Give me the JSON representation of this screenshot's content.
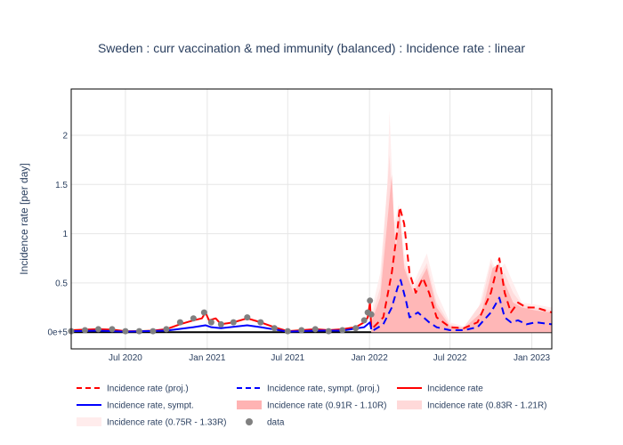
{
  "chart_data": {
    "type": "line",
    "title": "Sweden : curr vaccination & med immunity (balanced) : Incidence rate : linear",
    "ylabel": "Incidence rate [per day]",
    "xlabel": "",
    "x_ticks": [
      "Jul 2020",
      "Jan 2021",
      "Jul 2021",
      "Jan 2022",
      "Jul 2022",
      "Jan 2023"
    ],
    "y_ticks": [
      "0e+5",
      "0.5",
      "1",
      "1.5",
      "2"
    ],
    "ylim": [
      -0.17,
      2.47
    ],
    "xlim": [
      "2020-03-01",
      "2023-02-15"
    ],
    "grid": true,
    "legend_position": "bottom",
    "legend": [
      {
        "key": "proj",
        "label": "Incidence rate (proj.)",
        "style": "dash",
        "color": "#ff0000"
      },
      {
        "key": "sympt_proj",
        "label": "Incidence rate, sympt. (proj.)",
        "style": "dash",
        "color": "#0000ff"
      },
      {
        "key": "rate",
        "label": "Incidence rate",
        "style": "line",
        "color": "#ff0000"
      },
      {
        "key": "sympt",
        "label": "Incidence rate, sympt.",
        "style": "line",
        "color": "#0000ff"
      },
      {
        "key": "band1",
        "label": "Incidence rate (0.91R - 1.10R)",
        "style": "band",
        "color": "#ffb3b3"
      },
      {
        "key": "band2",
        "label": "Incidence rate (0.83R - 1.21R)",
        "style": "band",
        "color": "#ffd9d9"
      },
      {
        "key": "band3",
        "label": "Incidence rate (0.75R - 1.33R)",
        "style": "band",
        "color": "#ffecec"
      },
      {
        "key": "data",
        "label": "data",
        "style": "marker",
        "color": "#808080"
      }
    ],
    "series": {
      "data": [
        [
          "2020-03-01",
          0.01
        ],
        [
          "2020-04-01",
          0.02
        ],
        [
          "2020-05-01",
          0.03
        ],
        [
          "2020-06-01",
          0.03
        ],
        [
          "2020-07-01",
          0.01
        ],
        [
          "2020-08-01",
          0.01
        ],
        [
          "2020-09-01",
          0.01
        ],
        [
          "2020-10-01",
          0.03
        ],
        [
          "2020-11-01",
          0.1
        ],
        [
          "2020-12-01",
          0.14
        ],
        [
          "2020-12-25",
          0.2
        ],
        [
          "2021-01-10",
          0.1
        ],
        [
          "2021-02-01",
          0.08
        ],
        [
          "2021-03-01",
          0.1
        ],
        [
          "2021-04-01",
          0.15
        ],
        [
          "2021-05-01",
          0.1
        ],
        [
          "2021-06-01",
          0.04
        ],
        [
          "2021-07-01",
          0.01
        ],
        [
          "2021-08-01",
          0.02
        ],
        [
          "2021-09-01",
          0.03
        ],
        [
          "2021-10-01",
          0.01
        ],
        [
          "2021-11-01",
          0.02
        ],
        [
          "2021-12-01",
          0.04
        ],
        [
          "2021-12-20",
          0.12
        ],
        [
          "2021-12-28",
          0.2
        ],
        [
          "2022-01-02",
          0.32
        ],
        [
          "2022-01-05",
          0.18
        ]
      ],
      "rate": [
        [
          "2020-03-01",
          0.02
        ],
        [
          "2020-04-01",
          0.025
        ],
        [
          "2020-05-01",
          0.03
        ],
        [
          "2020-06-01",
          0.025
        ],
        [
          "2020-07-01",
          0.01
        ],
        [
          "2020-08-01",
          0.01
        ],
        [
          "2020-09-01",
          0.015
        ],
        [
          "2020-10-01",
          0.03
        ],
        [
          "2020-11-01",
          0.08
        ],
        [
          "2020-12-01",
          0.12
        ],
        [
          "2020-12-20",
          0.14
        ],
        [
          "2020-12-28",
          0.2
        ],
        [
          "2021-01-05",
          0.12
        ],
        [
          "2021-01-20",
          0.14
        ],
        [
          "2021-02-01",
          0.08
        ],
        [
          "2021-03-01",
          0.1
        ],
        [
          "2021-04-01",
          0.14
        ],
        [
          "2021-05-01",
          0.1
        ],
        [
          "2021-06-01",
          0.05
        ],
        [
          "2021-07-01",
          0.01
        ],
        [
          "2021-08-01",
          0.02
        ],
        [
          "2021-09-01",
          0.03
        ],
        [
          "2021-10-01",
          0.02
        ],
        [
          "2021-11-01",
          0.03
        ],
        [
          "2021-12-01",
          0.05
        ],
        [
          "2021-12-20",
          0.1
        ],
        [
          "2021-12-28",
          0.15
        ],
        [
          "2022-01-02",
          0.3
        ],
        [
          "2022-01-05",
          0.05
        ]
      ],
      "sympt": [
        [
          "2020-03-01",
          0.01
        ],
        [
          "2020-05-01",
          0.015
        ],
        [
          "2020-07-01",
          0.005
        ],
        [
          "2020-10-01",
          0.015
        ],
        [
          "2020-12-01",
          0.05
        ],
        [
          "2020-12-28",
          0.07
        ],
        [
          "2021-01-10",
          0.05
        ],
        [
          "2021-02-01",
          0.04
        ],
        [
          "2021-04-01",
          0.07
        ],
        [
          "2021-05-01",
          0.05
        ],
        [
          "2021-07-01",
          0.005
        ],
        [
          "2021-09-01",
          0.015
        ],
        [
          "2021-11-01",
          0.015
        ],
        [
          "2021-12-20",
          0.05
        ],
        [
          "2022-01-02",
          0.1
        ],
        [
          "2022-01-05",
          0.03
        ]
      ],
      "proj": [
        [
          "2022-01-10",
          0.05
        ],
        [
          "2022-02-01",
          0.15
        ],
        [
          "2022-02-20",
          0.6
        ],
        [
          "2022-03-05",
          1.05
        ],
        [
          "2022-03-10",
          1.27
        ],
        [
          "2022-03-20",
          1.1
        ],
        [
          "2022-04-01",
          0.6
        ],
        [
          "2022-04-15",
          0.4
        ],
        [
          "2022-05-01",
          0.55
        ],
        [
          "2022-05-15",
          0.4
        ],
        [
          "2022-06-01",
          0.15
        ],
        [
          "2022-07-01",
          0.05
        ],
        [
          "2022-08-01",
          0.04
        ],
        [
          "2022-09-01",
          0.1
        ],
        [
          "2022-10-01",
          0.4
        ],
        [
          "2022-10-20",
          0.75
        ],
        [
          "2022-11-01",
          0.4
        ],
        [
          "2022-11-15",
          0.2
        ],
        [
          "2022-12-01",
          0.3
        ],
        [
          "2022-12-20",
          0.25
        ],
        [
          "2023-01-10",
          0.25
        ],
        [
          "2023-02-15",
          0.2
        ]
      ],
      "sympt_proj": [
        [
          "2022-01-10",
          0.02
        ],
        [
          "2022-02-01",
          0.08
        ],
        [
          "2022-02-20",
          0.25
        ],
        [
          "2022-03-05",
          0.45
        ],
        [
          "2022-03-12",
          0.53
        ],
        [
          "2022-03-25",
          0.3
        ],
        [
          "2022-04-01",
          0.15
        ],
        [
          "2022-04-20",
          0.2
        ],
        [
          "2022-05-15",
          0.1
        ],
        [
          "2022-06-01",
          0.05
        ],
        [
          "2022-07-01",
          0.02
        ],
        [
          "2022-08-01",
          0.02
        ],
        [
          "2022-09-01",
          0.05
        ],
        [
          "2022-10-01",
          0.2
        ],
        [
          "2022-10-20",
          0.35
        ],
        [
          "2022-11-01",
          0.15
        ],
        [
          "2022-11-15",
          0.1
        ],
        [
          "2022-12-01",
          0.12
        ],
        [
          "2022-12-20",
          0.08
        ],
        [
          "2023-01-10",
          0.1
        ],
        [
          "2023-02-15",
          0.08
        ]
      ],
      "band3_upper": [
        [
          "2022-01-05",
          0.2
        ],
        [
          "2022-01-25",
          0.6
        ],
        [
          "2022-02-10",
          1.5
        ],
        [
          "2022-02-15",
          2.25
        ],
        [
          "2022-02-25",
          1.1
        ],
        [
          "2022-03-08",
          1.3
        ],
        [
          "2022-03-20",
          0.8
        ],
        [
          "2022-04-10",
          0.5
        ],
        [
          "2022-05-10",
          0.8
        ],
        [
          "2022-06-01",
          0.4
        ],
        [
          "2022-07-01",
          0.1
        ],
        [
          "2022-08-01",
          0.06
        ],
        [
          "2022-09-01",
          0.2
        ],
        [
          "2022-09-20",
          0.55
        ],
        [
          "2022-10-01",
          0.75
        ],
        [
          "2022-10-15",
          0.6
        ],
        [
          "2022-11-01",
          0.7
        ],
        [
          "2022-11-20",
          0.5
        ],
        [
          "2022-12-10",
          0.3
        ],
        [
          "2023-01-10",
          0.28
        ],
        [
          "2023-02-15",
          0.25
        ]
      ],
      "band2_upper": [
        [
          "2022-01-05",
          0.15
        ],
        [
          "2022-01-25",
          0.45
        ],
        [
          "2022-02-15",
          1.8
        ],
        [
          "2022-02-25",
          0.9
        ],
        [
          "2022-03-08",
          1.25
        ],
        [
          "2022-03-20",
          0.7
        ],
        [
          "2022-04-10",
          0.45
        ],
        [
          "2022-05-10",
          0.7
        ],
        [
          "2022-06-01",
          0.3
        ],
        [
          "2022-07-01",
          0.08
        ],
        [
          "2022-08-01",
          0.05
        ],
        [
          "2022-09-10",
          0.3
        ],
        [
          "2022-10-01",
          0.7
        ],
        [
          "2022-10-15",
          0.55
        ],
        [
          "2022-11-01",
          0.6
        ],
        [
          "2022-11-20",
          0.4
        ],
        [
          "2022-12-10",
          0.28
        ],
        [
          "2023-01-10",
          0.25
        ],
        [
          "2023-02-15",
          0.22
        ]
      ],
      "band1_upper": [
        [
          "2022-01-05",
          0.1
        ],
        [
          "2022-01-25",
          0.35
        ],
        [
          "2022-02-20",
          1.6
        ],
        [
          "2022-03-01",
          0.8
        ],
        [
          "2022-03-10",
          1.25
        ],
        [
          "2022-03-20",
          0.65
        ],
        [
          "2022-04-10",
          0.4
        ],
        [
          "2022-05-10",
          0.65
        ],
        [
          "2022-06-01",
          0.25
        ],
        [
          "2022-07-01",
          0.06
        ],
        [
          "2022-08-01",
          0.04
        ],
        [
          "2022-09-10",
          0.2
        ],
        [
          "2022-10-05",
          0.65
        ],
        [
          "2022-10-20",
          0.7
        ],
        [
          "2022-11-01",
          0.5
        ],
        [
          "2022-11-20",
          0.3
        ],
        [
          "2022-12-10",
          0.25
        ],
        [
          "2023-01-10",
          0.22
        ],
        [
          "2023-02-15",
          0.2
        ]
      ]
    }
  }
}
